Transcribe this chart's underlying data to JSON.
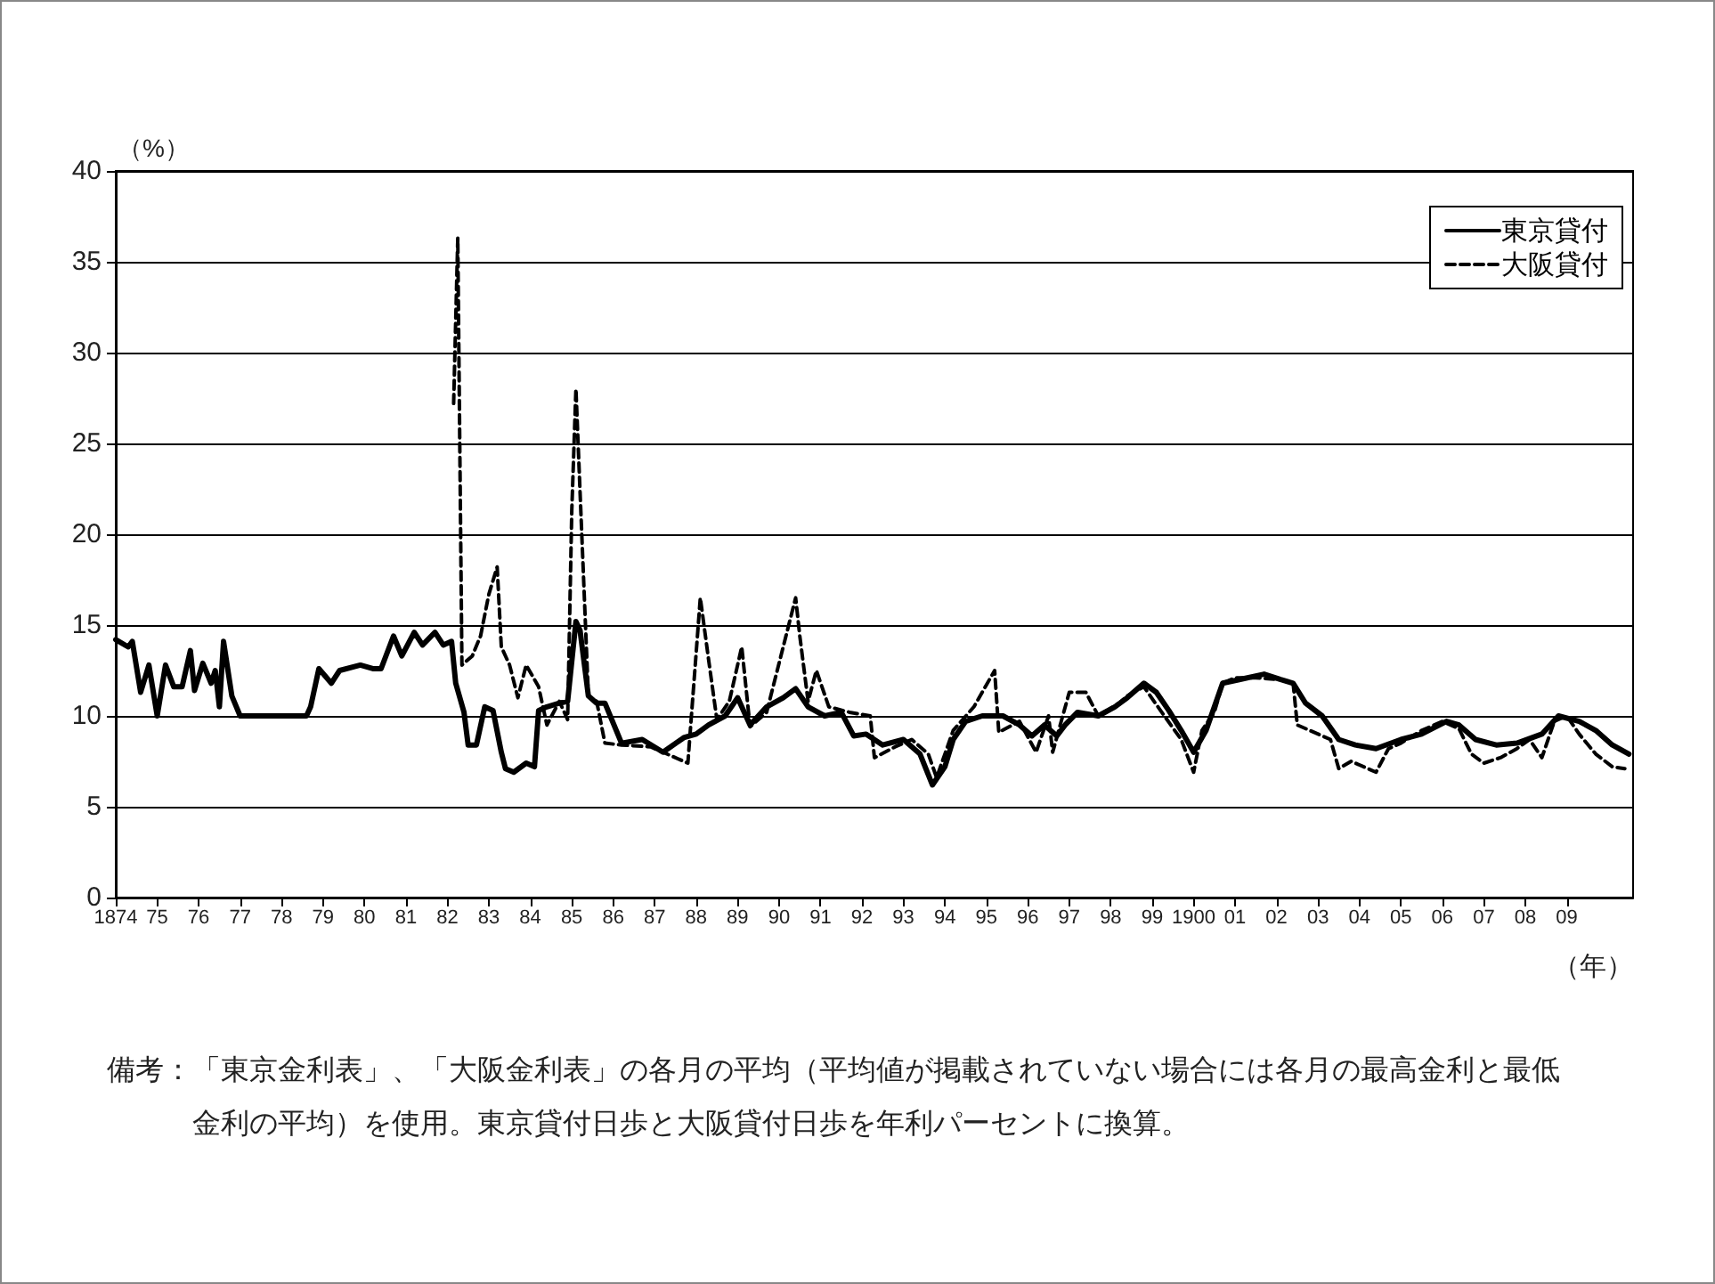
{
  "chart_data": {
    "type": "line",
    "ylabel": "（%）",
    "xlabel": "（年）",
    "xlim": [
      1874,
      1910.6
    ],
    "ylim": [
      0,
      40
    ],
    "yticks": [
      0,
      5,
      10,
      15,
      20,
      25,
      30,
      35,
      40
    ],
    "xticks": [
      1874,
      {
        "value": 1875,
        "label": "75"
      },
      {
        "value": 1876,
        "label": "76"
      },
      {
        "value": 1877,
        "label": "77"
      },
      {
        "value": 1878,
        "label": "78"
      },
      {
        "value": 1879,
        "label": "79"
      },
      {
        "value": 1880,
        "label": "80"
      },
      {
        "value": 1881,
        "label": "81"
      },
      {
        "value": 1882,
        "label": "82"
      },
      {
        "value": 1883,
        "label": "83"
      },
      {
        "value": 1884,
        "label": "84"
      },
      {
        "value": 1885,
        "label": "85"
      },
      {
        "value": 1886,
        "label": "86"
      },
      {
        "value": 1887,
        "label": "87"
      },
      {
        "value": 1888,
        "label": "88"
      },
      {
        "value": 1889,
        "label": "89"
      },
      {
        "value": 1890,
        "label": "90"
      },
      {
        "value": 1891,
        "label": "91"
      },
      {
        "value": 1892,
        "label": "92"
      },
      {
        "value": 1893,
        "label": "93"
      },
      {
        "value": 1894,
        "label": "94"
      },
      {
        "value": 1895,
        "label": "95"
      },
      {
        "value": 1896,
        "label": "96"
      },
      {
        "value": 1897,
        "label": "97"
      },
      {
        "value": 1898,
        "label": "98"
      },
      {
        "value": 1899,
        "label": "99"
      },
      1900,
      {
        "value": 1901,
        "label": "01"
      },
      {
        "value": 1902,
        "label": "02"
      },
      {
        "value": 1903,
        "label": "03"
      },
      {
        "value": 1904,
        "label": "04"
      },
      {
        "value": 1905,
        "label": "05"
      },
      {
        "value": 1906,
        "label": "06"
      },
      {
        "value": 1907,
        "label": "07"
      },
      {
        "value": 1908,
        "label": "08"
      },
      {
        "value": 1909,
        "label": "09"
      }
    ],
    "grid": "y",
    "legend": "top right",
    "marker": "none",
    "series": [
      {
        "name": "東京貸付",
        "color": "#000000",
        "line_style": "solid",
        "x": [
          1874.0,
          1874.3,
          1874.4,
          1874.6,
          1874.8,
          1875.0,
          1875.2,
          1875.4,
          1875.6,
          1875.8,
          1875.9,
          1876.1,
          1876.3,
          1876.4,
          1876.5,
          1876.6,
          1876.8,
          1877.0,
          1878.6,
          1878.7,
          1878.9,
          1879.2,
          1879.4,
          1879.9,
          1880.2,
          1880.4,
          1880.7,
          1880.9,
          1881.2,
          1881.4,
          1881.7,
          1881.9,
          1882.1,
          1882.2,
          1882.4,
          1882.5,
          1882.7,
          1882.9,
          1883.1,
          1883.3,
          1883.4,
          1883.6,
          1883.9,
          1884.1,
          1884.2,
          1884.4,
          1884.7,
          1884.9,
          1885.1,
          1885.2,
          1885.4,
          1885.6,
          1885.8,
          1886.2,
          1886.7,
          1887.2,
          1887.7,
          1888.0,
          1888.3,
          1888.7,
          1889.0,
          1889.3,
          1889.7,
          1890.1,
          1890.4,
          1890.7,
          1891.1,
          1891.5,
          1891.8,
          1892.1,
          1892.5,
          1893.0,
          1893.4,
          1893.7,
          1894.0,
          1894.2,
          1894.5,
          1894.9,
          1895.4,
          1895.8,
          1896.1,
          1896.4,
          1896.7,
          1896.9,
          1897.2,
          1897.7,
          1898.1,
          1898.4,
          1898.8,
          1899.1,
          1899.4,
          1899.7,
          1900.0,
          1900.3,
          1900.5,
          1900.7,
          1901.1,
          1901.7,
          1902.1,
          1902.4,
          1902.7,
          1903.1,
          1903.5,
          1903.9,
          1904.4,
          1905.0,
          1905.5,
          1906.1,
          1906.4,
          1906.8,
          1907.3,
          1907.8,
          1908.4,
          1908.8,
          1909.3,
          1909.7,
          1910.1,
          1910.5
        ],
        "values": [
          14.2,
          13.8,
          14.1,
          11.3,
          12.8,
          10.0,
          12.8,
          11.6,
          11.6,
          13.6,
          11.4,
          12.9,
          11.8,
          12.5,
          10.5,
          14.1,
          11.1,
          10.0,
          10.0,
          10.5,
          12.6,
          11.8,
          12.5,
          12.8,
          12.6,
          12.6,
          14.4,
          13.3,
          14.6,
          13.9,
          14.6,
          13.9,
          14.1,
          11.8,
          10.2,
          8.4,
          8.4,
          10.5,
          10.3,
          8.0,
          7.1,
          6.9,
          7.4,
          7.2,
          10.3,
          10.5,
          10.7,
          10.8,
          15.2,
          14.7,
          11.1,
          10.7,
          10.7,
          8.5,
          8.7,
          8.0,
          8.8,
          9.0,
          9.5,
          10.0,
          11.0,
          9.5,
          10.5,
          11.0,
          11.5,
          10.5,
          10.0,
          10.2,
          8.9,
          9.0,
          8.4,
          8.7,
          7.9,
          6.2,
          7.2,
          8.7,
          9.7,
          10.0,
          10.0,
          9.5,
          8.9,
          9.5,
          8.9,
          9.5,
          10.2,
          10.0,
          10.5,
          11.0,
          11.8,
          11.3,
          10.3,
          9.2,
          8.0,
          9.2,
          10.5,
          11.8,
          12.0,
          12.3,
          12.0,
          11.8,
          10.7,
          10.0,
          8.7,
          8.4,
          8.2,
          8.7,
          9.0,
          9.7,
          9.5,
          8.7,
          8.4,
          8.5,
          9.0,
          10.0,
          9.7,
          9.2,
          8.4,
          7.9
        ]
      },
      {
        "name": "大阪貸付",
        "color": "#000000",
        "line_style": "dashed",
        "x": [
          1882.15,
          1882.25,
          1882.35,
          1882.6,
          1882.8,
          1883.0,
          1883.2,
          1883.3,
          1883.5,
          1883.7,
          1883.9,
          1884.2,
          1884.4,
          1884.7,
          1884.9,
          1885.0,
          1885.1,
          1885.2,
          1885.4,
          1885.6,
          1885.8,
          1886.2,
          1886.9,
          1887.8,
          1888.1,
          1888.3,
          1888.5,
          1888.8,
          1889.1,
          1889.3,
          1889.7,
          1890.2,
          1890.4,
          1890.5,
          1890.7,
          1890.9,
          1891.2,
          1891.7,
          1892.2,
          1892.3,
          1892.8,
          1893.2,
          1893.6,
          1893.8,
          1894.2,
          1894.7,
          1895.2,
          1895.3,
          1895.8,
          1896.2,
          1896.5,
          1896.6,
          1897.0,
          1897.4,
          1897.7,
          1898.2,
          1898.4,
          1898.8,
          1899.2,
          1899.7,
          1900.0,
          1900.2,
          1900.5,
          1900.7,
          1901.0,
          1901.5,
          1902.1,
          1902.4,
          1902.5,
          1902.8,
          1903.3,
          1903.5,
          1903.8,
          1904.4,
          1904.7,
          1905.0,
          1905.5,
          1906.0,
          1906.4,
          1906.7,
          1907.0,
          1907.4,
          1907.8,
          1908.1,
          1908.4,
          1908.7,
          1909.0,
          1909.3,
          1909.7,
          1910.1,
          1910.4
        ],
        "values": [
          27.2,
          36.3,
          12.8,
          13.3,
          14.4,
          16.7,
          18.2,
          13.8,
          12.8,
          11.0,
          12.8,
          11.6,
          9.5,
          10.8,
          9.8,
          21.3,
          28.0,
          22.3,
          11.1,
          10.8,
          8.5,
          8.4,
          8.3,
          7.4,
          16.5,
          13.1,
          9.8,
          10.8,
          13.8,
          9.4,
          10.2,
          14.7,
          16.5,
          14.4,
          10.8,
          12.5,
          10.5,
          10.2,
          10.0,
          7.7,
          8.3,
          8.7,
          7.9,
          6.6,
          9.2,
          10.5,
          12.5,
          9.1,
          9.7,
          8.0,
          10.0,
          8.0,
          11.3,
          11.3,
          10.0,
          10.7,
          11.1,
          11.6,
          10.3,
          8.7,
          6.9,
          9.2,
          10.2,
          11.8,
          12.1,
          12.1,
          12.0,
          11.8,
          9.5,
          9.2,
          8.7,
          7.1,
          7.5,
          6.9,
          8.2,
          8.5,
          9.2,
          9.7,
          9.3,
          7.9,
          7.4,
          7.7,
          8.2,
          8.7,
          7.7,
          9.7,
          10.0,
          9.0,
          7.9,
          7.2,
          7.1
        ]
      }
    ],
    "annotations": [
      "備考：「東京金利表」、「大阪金利表」の各月の平均（平均値が掲載されていない場合には各月の最高金利と最低金利の平均）を使用。東京貸付日歩と大阪貸付日歩を年利パーセントに換算。"
    ]
  }
}
